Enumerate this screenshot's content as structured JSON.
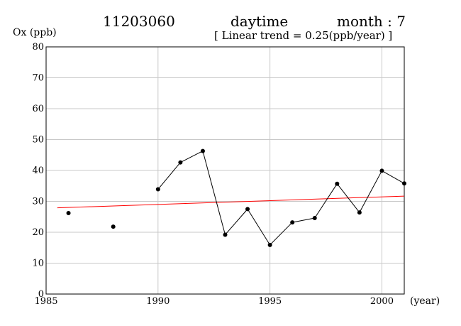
{
  "header": {
    "station": "11203060",
    "period": "daytime",
    "month": "month : 7",
    "trend_text": "[ Linear trend = 0.25(ppb/year) ]"
  },
  "chart_data": {
    "type": "line",
    "ylabel": "Ox (ppb)",
    "xlabel": "(year)",
    "xlim": [
      1985,
      2001
    ],
    "ylim": [
      0,
      80
    ],
    "x_ticks": [
      1985,
      1990,
      1995,
      2000
    ],
    "y_ticks": [
      0,
      10,
      20,
      30,
      40,
      50,
      60,
      70,
      80
    ],
    "grid": true,
    "series": [
      {
        "x": [
          1986,
          1988,
          1990,
          1991,
          1992,
          1993,
          1994,
          1995,
          1996,
          1997,
          1998,
          1999,
          2000,
          2001
        ],
        "values": [
          26.2,
          21.8,
          33.9,
          42.6,
          46.3,
          19.2,
          27.5,
          15.9,
          23.2,
          24.6,
          35.7,
          26.4,
          39.9,
          35.8
        ],
        "color": "#000000"
      }
    ],
    "trend_line": {
      "x": [
        1985.5,
        2001
      ],
      "y": [
        27.9,
        31.7
      ],
      "color": "#ff0000",
      "slope": 0.25
    }
  }
}
